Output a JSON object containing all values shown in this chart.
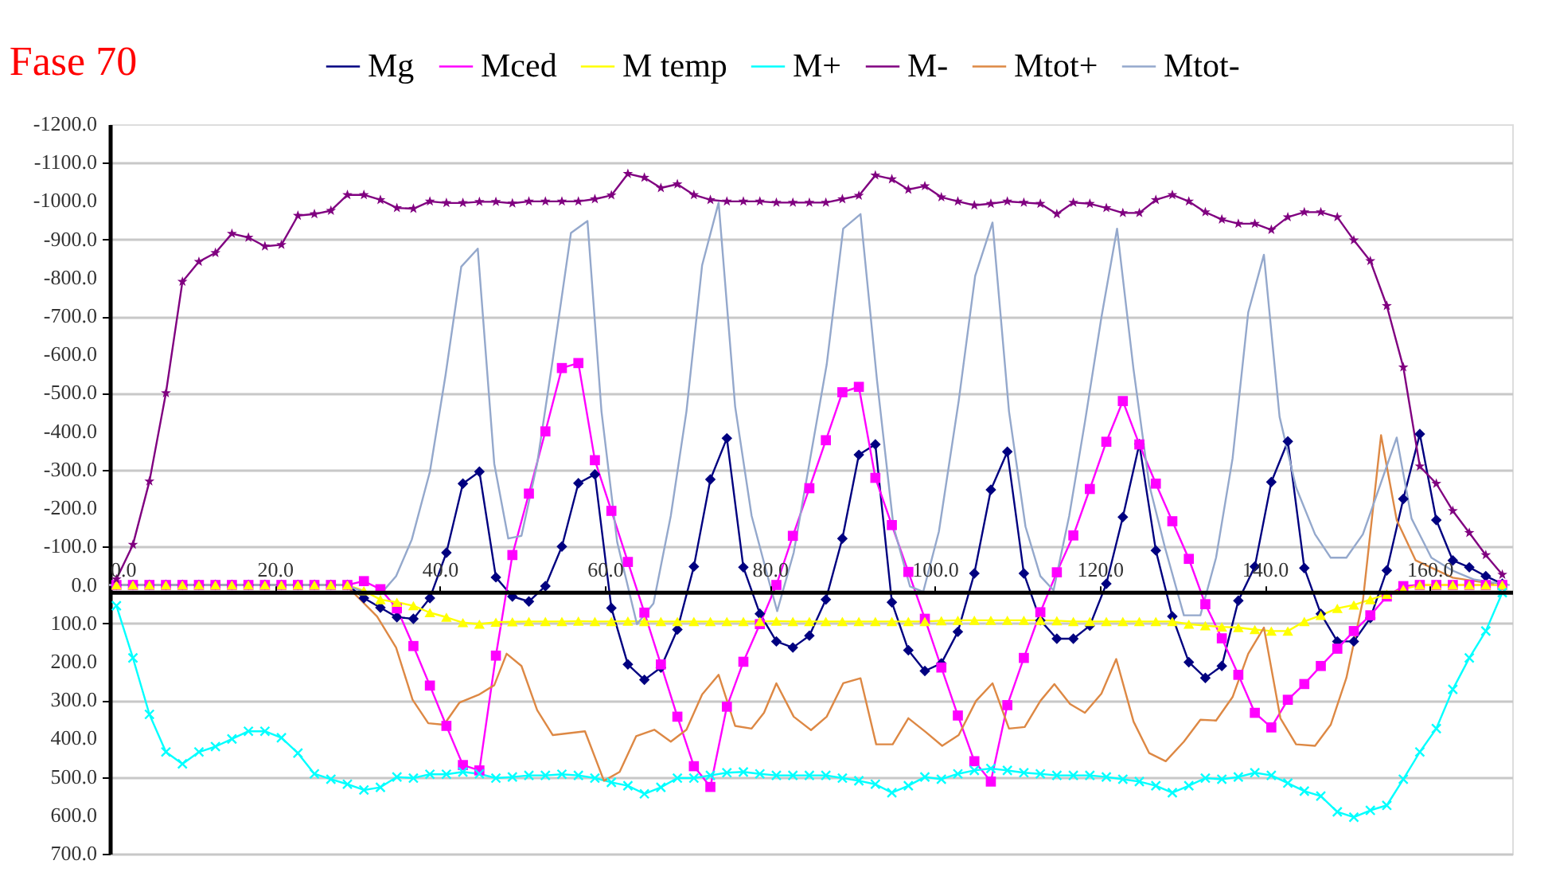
{
  "chart_data": {
    "type": "line",
    "title": "Fase 70",
    "x": [
      0.8,
      2.8,
      4.8,
      6.8,
      8.8,
      10.8,
      12.8,
      14.8,
      16.8,
      18.8,
      20.8,
      22.8,
      24.8,
      26.8,
      28.8,
      30.8,
      32.8,
      34.8,
      36.8,
      38.8,
      40.8,
      42.8,
      44.8,
      46.8,
      48.8,
      50.8,
      52.8,
      54.8,
      56.8,
      58.8,
      60.8,
      62.8,
      64.8,
      66.8,
      68.8,
      70.8,
      72.8,
      74.8,
      76.8,
      78.8,
      80.8,
      82.8,
      84.8,
      86.8,
      88.8,
      90.8,
      92.8,
      94.8,
      96.8,
      98.8,
      100.8,
      102.8,
      104.8,
      106.8,
      108.8,
      110.8,
      112.8,
      114.8,
      116.8,
      118.8,
      120.8,
      122.8,
      124.8,
      126.8,
      128.8,
      130.8,
      132.8,
      134.8,
      136.8,
      138.8,
      140.8,
      142.8,
      144.8,
      146.8,
      148.8,
      150.8,
      152.8,
      154.8,
      156.8,
      158.8,
      160.8,
      162.8,
      164.8,
      166.8,
      168.8
    ],
    "series": [
      {
        "name": "Mg",
        "color": "#000080",
        "marker": "diamond",
        "values": [
          0,
          0,
          0,
          0,
          0,
          0,
          0,
          0,
          0,
          0,
          0,
          0,
          0,
          0,
          0,
          34,
          59,
          84,
          88,
          34,
          -84,
          -264,
          -295,
          -20,
          30,
          43,
          3,
          -100,
          -265,
          -288,
          60,
          207,
          247,
          215,
          116,
          -48,
          -275,
          -382,
          -46,
          75,
          147,
          163,
          132,
          38,
          -121,
          -339,
          -366,
          45,
          170,
          224,
          204,
          122,
          -30,
          -248,
          -347,
          -30,
          92,
          140,
          140,
          106,
          -3,
          -177,
          -367,
          -90,
          82,
          201,
          242,
          211,
          41,
          -48,
          -268,
          -374,
          -44,
          75,
          147,
          147,
          86,
          -38,
          -224,
          -393,
          -169,
          -64,
          -46,
          -23,
          -3
        ]
      },
      {
        "name": "Mced",
        "color": "#ff00ff",
        "marker": "square",
        "values": [
          0,
          0,
          0,
          0,
          0,
          0,
          0,
          0,
          0,
          0,
          0,
          0,
          0,
          0,
          0,
          -10,
          11,
          61,
          159,
          262,
          367,
          469,
          483,
          184,
          -78,
          -238,
          -400,
          -565,
          -578,
          -325,
          -193,
          -60,
          72,
          207,
          343,
          472,
          526,
          317,
          200,
          102,
          0,
          -128,
          -252,
          -377,
          -502,
          -516,
          -279,
          -156,
          -34,
          88,
          215,
          340,
          459,
          512,
          313,
          190,
          71,
          -33,
          -129,
          -250,
          -373,
          -479,
          -366,
          -264,
          -166,
          -68,
          50,
          139,
          234,
          333,
          371,
          299,
          258,
          211,
          166,
          120,
          79,
          30,
          3,
          0,
          0,
          0,
          0,
          0,
          0
        ]
      },
      {
        "name": "M temp",
        "color": "#ffff00",
        "marker": "triangle",
        "values": [
          0,
          0,
          0,
          0,
          0,
          0,
          0,
          0,
          0,
          0,
          0,
          0,
          0,
          0,
          0,
          15,
          38,
          45,
          54,
          72,
          84,
          98,
          102,
          97,
          96,
          95,
          95,
          95,
          94,
          95,
          95,
          94,
          95,
          95,
          95,
          95,
          95,
          95,
          95,
          95,
          94,
          95,
          95,
          95,
          95,
          95,
          95,
          95,
          95,
          95,
          93,
          92,
          92,
          92,
          92,
          92,
          92,
          93,
          95,
          95,
          95,
          95,
          95,
          95,
          95,
          102,
          106,
          109,
          111,
          116,
          120,
          120,
          95,
          79,
          61,
          52,
          38,
          24,
          11,
          0,
          0,
          0,
          0,
          0,
          0
        ]
      },
      {
        "name": "M+",
        "color": "#00ffff",
        "marker": "cross",
        "values": [
          54,
          190,
          337,
          435,
          466,
          435,
          421,
          401,
          381,
          381,
          398,
          438,
          492,
          506,
          519,
          534,
          527,
          500,
          503,
          493,
          493,
          487,
          492,
          503,
          500,
          496,
          496,
          493,
          496,
          503,
          514,
          523,
          544,
          527,
          503,
          503,
          496,
          489,
          487,
          492,
          496,
          496,
          496,
          496,
          503,
          510,
          519,
          541,
          523,
          500,
          506,
          492,
          483,
          478,
          483,
          489,
          492,
          496,
          496,
          496,
          500,
          506,
          512,
          523,
          541,
          523,
          503,
          506,
          500,
          489,
          496,
          516,
          537,
          550,
          591,
          605,
          587,
          574,
          506,
          435,
          374,
          272,
          190,
          120,
          20
        ]
      },
      {
        "name": "M-",
        "color": "#800080",
        "marker": "star",
        "values": [
          -15,
          -105,
          -270,
          -500,
          -790,
          -842,
          -865,
          -915,
          -905,
          -882,
          -886,
          -962,
          -966,
          -975,
          -1016,
          -1016,
          -1003,
          -982,
          -980,
          -999,
          -995,
          -995,
          -998,
          -998,
          -994,
          -999,
          -999,
          -999,
          -999,
          -1005,
          -1015,
          -1071,
          -1061,
          -1034,
          -1044,
          -1016,
          -1003,
          -999,
          -999,
          -999,
          -996,
          -996,
          -996,
          -996,
          -1005,
          -1014,
          -1067,
          -1057,
          -1030,
          -1039,
          -1010,
          -999,
          -989,
          -993,
          -999,
          -996,
          -993,
          -966,
          -996,
          -993,
          -982,
          -969,
          -969,
          -1003,
          -1016,
          -999,
          -971,
          -952,
          -941,
          -941,
          -925,
          -958,
          -971,
          -971,
          -958,
          -898,
          -844,
          -727,
          -567,
          -309,
          -264,
          -193,
          -136,
          -78,
          -27
        ]
      },
      {
        "name": "Mtot+",
        "color": "#dd8844",
        "marker": "none",
        "x": [
          0,
          28.6,
          32.4,
          34.7,
          36.7,
          38.6,
          40.5,
          42.4,
          44.7,
          46.6,
          48.1,
          49.9,
          51.8,
          53.7,
          57.6,
          59.9,
          61.8,
          63.8,
          66,
          68,
          69.9,
          71.8,
          73.8,
          75.8,
          77.8,
          79.3,
          80.8,
          82.9,
          85,
          86.9,
          88.9,
          91,
          92.9,
          94.9,
          96.8,
          98.9,
          100.9,
          102.9,
          105,
          107,
          109,
          110.9,
          112.8,
          114.5,
          116.4,
          118.2,
          120.2,
          122,
          124.1,
          126,
          128,
          130.2,
          132.2,
          134.1,
          136.1,
          138,
          139.9,
          141.9,
          143.8,
          146.1,
          148,
          149.9,
          151.9,
          154.1,
          156,
          158.3,
          162.8,
          167.7
        ],
        "values": [
          0,
          0,
          82,
          163,
          299,
          360,
          364,
          306,
          286,
          261,
          179,
          211,
          326,
          391,
          381,
          510,
          487,
          394,
          377,
          408,
          377,
          285,
          234,
          367,
          374,
          333,
          256,
          343,
          378,
          343,
          256,
          243,
          415,
          415,
          347,
          383,
          419,
          391,
          302,
          256,
          374,
          370,
          302,
          258,
          310,
          333,
          283,
          193,
          356,
          438,
          459,
          408,
          351,
          353,
          292,
          179,
          111,
          347,
          415,
          419,
          364,
          242,
          41,
          -390,
          -169,
          -64,
          -19,
          -3
        ]
      },
      {
        "name": "Mtot-",
        "color": "#94a8cc",
        "marker": "none",
        "x": [
          0,
          28.6,
          30.8,
          32.8,
          34.7,
          36.6,
          38.8,
          40.7,
          42.6,
          44.6,
          46.6,
          48.3,
          49.9,
          51.8,
          53.7,
          55.9,
          57.9,
          59.6,
          61.5,
          63.9,
          65.9,
          68,
          69.9,
          71.8,
          73.8,
          75.8,
          77.8,
          79.9,
          80.9,
          82.9,
          84.9,
          86.9,
          88.9,
          91,
          93,
          95,
          97,
          98.6,
          100.5,
          102.9,
          104.9,
          107,
          109,
          111,
          112.8,
          114.4,
          116.3,
          118.2,
          120.2,
          122.1,
          124.1,
          126,
          127.9,
          130.2,
          132.2,
          134.1,
          136.1,
          138,
          139.9,
          141.8,
          143.8,
          146.1,
          148,
          149.9,
          151.9,
          153.8,
          156,
          157.8,
          160.2,
          162.8,
          165.4,
          169.6
        ],
        "values": [
          0,
          0,
          18,
          24,
          -23,
          -118,
          -295,
          -547,
          -829,
          -876,
          -316,
          -121,
          -128,
          -316,
          -588,
          -917,
          -948,
          -452,
          -112,
          102,
          48,
          -180,
          -452,
          -833,
          -996,
          -465,
          -180,
          -10,
          68,
          -84,
          -329,
          -574,
          -928,
          -966,
          -533,
          -152,
          4,
          18,
          -139,
          -479,
          -805,
          -944,
          -452,
          -152,
          -23,
          14,
          -180,
          -424,
          -697,
          -928,
          -561,
          -261,
          -98,
          79,
          79,
          -71,
          -329,
          -710,
          -860,
          -438,
          -254,
          -132,
          -71,
          -71,
          -132,
          -248,
          -384,
          -173,
          -71,
          -37,
          -14,
          0
        ]
      }
    ],
    "xlim": [
      0,
      170
    ],
    "xticks": [
      {
        "value": 0,
        "label": "0.0"
      },
      {
        "value": 20,
        "label": "20.0"
      },
      {
        "value": 40,
        "label": "40.0"
      },
      {
        "value": 60,
        "label": "60.0"
      },
      {
        "value": 80,
        "label": "80.0"
      },
      {
        "value": 100,
        "label": "100.0"
      },
      {
        "value": 120,
        "label": "120.0"
      },
      {
        "value": 140,
        "label": "140.0"
      },
      {
        "value": 160,
        "label": "160.0"
      }
    ],
    "ylim": [
      700,
      -1200
    ],
    "yticks": [
      {
        "value": -1200,
        "label": "-1200.0"
      },
      {
        "value": -1100,
        "label": "-1100.0"
      },
      {
        "value": -1000,
        "label": "-1000.0"
      },
      {
        "value": -900,
        "label": "-900.0"
      },
      {
        "value": -800,
        "label": "-800.0"
      },
      {
        "value": -700,
        "label": "-700.0"
      },
      {
        "value": -600,
        "label": "-600.0"
      },
      {
        "value": -500,
        "label": "-500.0"
      },
      {
        "value": -400,
        "label": "-400.0"
      },
      {
        "value": -300,
        "label": "-300.0"
      },
      {
        "value": -200,
        "label": "-200.0"
      },
      {
        "value": -100,
        "label": "-100.0"
      },
      {
        "value": 0,
        "label": "0.0"
      },
      {
        "value": 100,
        "label": "100.0"
      },
      {
        "value": 200,
        "label": "200.0"
      },
      {
        "value": 300,
        "label": "300.0"
      },
      {
        "value": 400,
        "label": "400.0"
      },
      {
        "value": 500,
        "label": "500.0"
      },
      {
        "value": 600,
        "label": "600.0"
      },
      {
        "value": 700,
        "label": "700.0"
      }
    ],
    "grid": "y",
    "legend": "top",
    "line_style": "solid"
  }
}
